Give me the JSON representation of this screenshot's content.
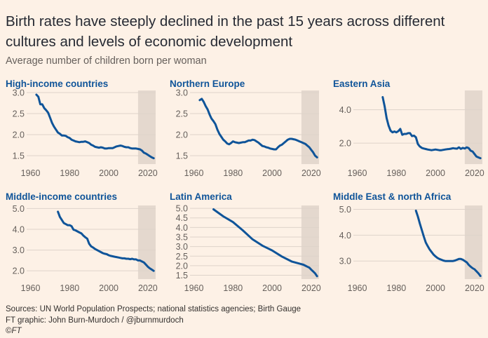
{
  "title": "Birth rates have steeply declined in the past 15 years across different cultures and levels of economic development",
  "subtitle": "Average number of children born per woman",
  "footer": {
    "sources": "Sources: UN World Population Prospects; national statistics agencies; Birth Gauge",
    "credit": "FT graphic: John Burn-Murdoch / @jburnmurdoch",
    "copyright_symbol": "©",
    "copyright_brand": "FT"
  },
  "colors": {
    "background": "#fdf1e6",
    "line": "#0f5499",
    "highlight": "#e4d8ce",
    "title": "#0f5499",
    "grid": "#ded3ca"
  },
  "chart_data": [
    {
      "type": "line",
      "title": "High-income countries",
      "xlim": [
        1958,
        2024
      ],
      "ylim": [
        1.3,
        3.05
      ],
      "yticks": [
        1.5,
        2.0,
        2.5,
        3.0
      ],
      "ytick_labels": [
        "1.5",
        "2.0",
        "2.5",
        "3.0"
      ],
      "xticks": [
        1960,
        1980,
        2000,
        2020
      ],
      "highlight": [
        2015,
        2024
      ],
      "x": [
        1963,
        1964,
        1965,
        1966,
        1967,
        1968,
        1969,
        1970,
        1971,
        1972,
        1973,
        1974,
        1975,
        1976,
        1977,
        1978,
        1979,
        1980,
        1981,
        1982,
        1983,
        1984,
        1985,
        1986,
        1987,
        1988,
        1989,
        1990,
        1991,
        1992,
        1993,
        1994,
        1995,
        1996,
        1997,
        1998,
        1999,
        2000,
        2001,
        2002,
        2003,
        2004,
        2005,
        2006,
        2007,
        2008,
        2009,
        2010,
        2011,
        2012,
        2013,
        2014,
        2015,
        2016,
        2017,
        2018,
        2019,
        2020,
        2021,
        2022,
        2023
      ],
      "y": [
        2.95,
        2.9,
        2.72,
        2.72,
        2.63,
        2.58,
        2.52,
        2.4,
        2.28,
        2.19,
        2.12,
        2.05,
        2.02,
        1.98,
        1.98,
        1.97,
        1.94,
        1.92,
        1.88,
        1.86,
        1.84,
        1.83,
        1.82,
        1.83,
        1.83,
        1.84,
        1.82,
        1.8,
        1.76,
        1.74,
        1.71,
        1.7,
        1.69,
        1.7,
        1.69,
        1.67,
        1.67,
        1.68,
        1.68,
        1.68,
        1.7,
        1.72,
        1.73,
        1.74,
        1.73,
        1.71,
        1.7,
        1.7,
        1.68,
        1.67,
        1.67,
        1.67,
        1.66,
        1.65,
        1.62,
        1.57,
        1.55,
        1.52,
        1.49,
        1.46,
        1.44
      ]
    },
    {
      "type": "line",
      "title": "Northern Europe",
      "xlim": [
        1958,
        2024
      ],
      "ylim": [
        1.3,
        3.05
      ],
      "yticks": [
        1.5,
        2.0,
        2.5,
        3.0
      ],
      "ytick_labels": [
        "1.5",
        "2.0",
        "2.5",
        "3.0"
      ],
      "xticks": [
        1960,
        1980,
        2000,
        2020
      ],
      "highlight": [
        2015,
        2024
      ],
      "x": [
        1963,
        1964,
        1965,
        1966,
        1967,
        1968,
        1969,
        1970,
        1971,
        1972,
        1973,
        1974,
        1975,
        1976,
        1977,
        1978,
        1979,
        1980,
        1981,
        1982,
        1983,
        1984,
        1985,
        1986,
        1987,
        1988,
        1989,
        1990,
        1991,
        1992,
        1993,
        1994,
        1995,
        1996,
        1997,
        1998,
        1999,
        2000,
        2001,
        2002,
        2003,
        2004,
        2005,
        2006,
        2007,
        2008,
        2009,
        2010,
        2011,
        2012,
        2013,
        2014,
        2015,
        2016,
        2017,
        2018,
        2019,
        2020,
        2021,
        2022,
        2023
      ],
      "y": [
        2.82,
        2.85,
        2.78,
        2.68,
        2.6,
        2.48,
        2.38,
        2.32,
        2.25,
        2.12,
        2.02,
        1.95,
        1.88,
        1.84,
        1.79,
        1.77,
        1.8,
        1.84,
        1.82,
        1.81,
        1.8,
        1.81,
        1.82,
        1.82,
        1.84,
        1.86,
        1.86,
        1.88,
        1.87,
        1.84,
        1.81,
        1.77,
        1.73,
        1.72,
        1.7,
        1.69,
        1.67,
        1.66,
        1.65,
        1.65,
        1.7,
        1.74,
        1.76,
        1.8,
        1.84,
        1.88,
        1.9,
        1.9,
        1.89,
        1.88,
        1.86,
        1.84,
        1.82,
        1.8,
        1.78,
        1.74,
        1.7,
        1.64,
        1.58,
        1.5,
        1.46
      ]
    },
    {
      "type": "line",
      "title": "Eastern Asia",
      "xlim": [
        1958,
        2024
      ],
      "ylim": [
        0.75,
        5.15
      ],
      "yticks": [
        2.0,
        4.0
      ],
      "ytick_labels": [
        "2.0",
        "4.0"
      ],
      "xticks": [
        1960,
        1980,
        2000,
        2020
      ],
      "highlight": [
        2015,
        2024
      ],
      "x": [
        1973,
        1974,
        1975,
        1976,
        1977,
        1978,
        1979,
        1980,
        1981,
        1982,
        1983,
        1984,
        1985,
        1986,
        1987,
        1988,
        1989,
        1990,
        1991,
        1992,
        1993,
        1994,
        1995,
        1996,
        1997,
        1998,
        1999,
        2000,
        2001,
        2002,
        2003,
        2004,
        2005,
        2006,
        2007,
        2008,
        2009,
        2010,
        2011,
        2012,
        2013,
        2014,
        2015,
        2016,
        2017,
        2018,
        2019,
        2020,
        2021,
        2022,
        2023
      ],
      "y": [
        4.75,
        4.2,
        3.5,
        3.05,
        2.75,
        2.65,
        2.7,
        2.65,
        2.72,
        2.85,
        2.5,
        2.55,
        2.55,
        2.6,
        2.6,
        2.42,
        2.45,
        2.35,
        1.95,
        1.8,
        1.72,
        1.68,
        1.65,
        1.62,
        1.6,
        1.58,
        1.6,
        1.62,
        1.6,
        1.58,
        1.58,
        1.6,
        1.62,
        1.64,
        1.65,
        1.67,
        1.7,
        1.68,
        1.67,
        1.75,
        1.66,
        1.72,
        1.68,
        1.75,
        1.7,
        1.55,
        1.5,
        1.35,
        1.2,
        1.15,
        1.1
      ]
    },
    {
      "type": "line",
      "title": "Middle-income countries",
      "xlim": [
        1958,
        2024
      ],
      "ylim": [
        1.6,
        5.15
      ],
      "yticks": [
        2.0,
        3.0,
        4.0,
        5.0
      ],
      "ytick_labels": [
        "2.0",
        "3.0",
        "4.0",
        "5.0"
      ],
      "xticks": [
        1960,
        1980,
        2000,
        2020
      ],
      "highlight": [
        2015,
        2024
      ],
      "x": [
        1974,
        1975,
        1976,
        1977,
        1978,
        1979,
        1980,
        1981,
        1982,
        1983,
        1984,
        1985,
        1986,
        1987,
        1988,
        1989,
        1990,
        1991,
        1992,
        1993,
        1994,
        1995,
        1996,
        1997,
        1998,
        1999,
        2000,
        2001,
        2002,
        2003,
        2004,
        2005,
        2006,
        2007,
        2008,
        2009,
        2010,
        2011,
        2012,
        2013,
        2014,
        2015,
        2016,
        2017,
        2018,
        2019,
        2020,
        2021,
        2022,
        2023
      ],
      "y": [
        4.85,
        4.6,
        4.45,
        4.3,
        4.25,
        4.2,
        4.2,
        4.15,
        3.98,
        3.95,
        3.9,
        3.85,
        3.8,
        3.7,
        3.62,
        3.55,
        3.3,
        3.18,
        3.12,
        3.05,
        3.0,
        2.95,
        2.9,
        2.85,
        2.82,
        2.8,
        2.75,
        2.72,
        2.7,
        2.68,
        2.66,
        2.64,
        2.62,
        2.6,
        2.6,
        2.58,
        2.58,
        2.56,
        2.58,
        2.55,
        2.55,
        2.5,
        2.5,
        2.45,
        2.4,
        2.3,
        2.2,
        2.12,
        2.06,
        2.0
      ]
    },
    {
      "type": "line",
      "title": "Latin America",
      "xlim": [
        1958,
        2024
      ],
      "ylim": [
        1.3,
        5.15
      ],
      "yticks": [
        1.5,
        2.0,
        2.5,
        3.0,
        3.5,
        4.0,
        4.5,
        5.0
      ],
      "ytick_labels": [
        "1.5",
        "2.0",
        "2.5",
        "3.0",
        "3.5",
        "4.0",
        "4.5",
        "5.0"
      ],
      "xticks": [
        1960,
        1980,
        2000,
        2020
      ],
      "highlight": [
        2015,
        2024
      ],
      "x": [
        1970,
        1975,
        1980,
        1985,
        1990,
        1995,
        2000,
        2005,
        2010,
        2015,
        2016,
        2017,
        2018,
        2019,
        2020,
        2021,
        2022,
        2023
      ],
      "y": [
        4.95,
        4.58,
        4.28,
        3.85,
        3.38,
        3.05,
        2.8,
        2.48,
        2.22,
        2.08,
        2.05,
        2.0,
        1.95,
        1.9,
        1.8,
        1.7,
        1.6,
        1.45
      ]
    },
    {
      "type": "line",
      "title": "Middle East & north Africa",
      "xlim": [
        1958,
        2024
      ],
      "ylim": [
        2.3,
        5.15
      ],
      "yticks": [
        3.0,
        4.0,
        5.0
      ],
      "ytick_labels": [
        "3.0",
        "4.0",
        "5.0"
      ],
      "xticks": [
        1960,
        1980,
        2000,
        2020
      ],
      "highlight": [
        2015,
        2024
      ],
      "x": [
        1990,
        1991,
        1992,
        1993,
        1994,
        1995,
        1996,
        1997,
        1998,
        1999,
        2000,
        2001,
        2002,
        2003,
        2004,
        2005,
        2006,
        2007,
        2008,
        2009,
        2010,
        2011,
        2012,
        2013,
        2014,
        2015,
        2016,
        2017,
        2018,
        2019,
        2020,
        2021,
        2022,
        2023
      ],
      "y": [
        4.95,
        4.72,
        4.45,
        4.2,
        3.95,
        3.72,
        3.58,
        3.45,
        3.35,
        3.25,
        3.18,
        3.12,
        3.08,
        3.05,
        3.02,
        3.0,
        3.0,
        3.0,
        3.0,
        3.0,
        3.02,
        3.05,
        3.08,
        3.08,
        3.05,
        3.0,
        2.95,
        2.85,
        2.78,
        2.72,
        2.68,
        2.6,
        2.52,
        2.42
      ]
    }
  ]
}
